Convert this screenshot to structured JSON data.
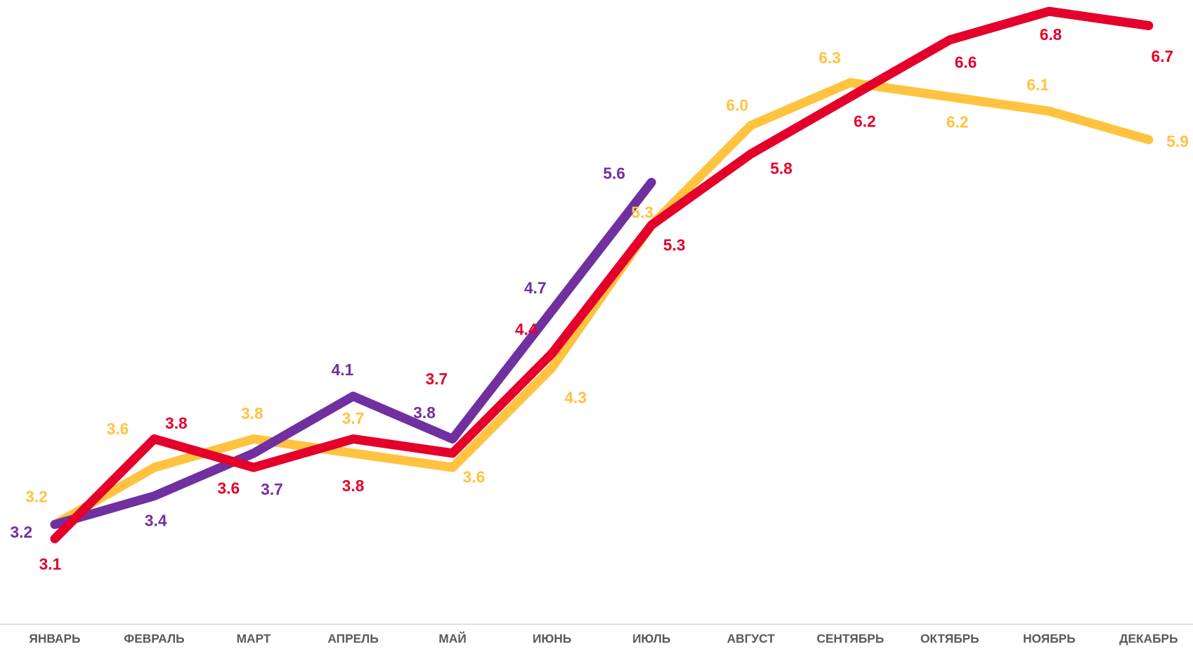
{
  "chart_data": {
    "type": "line",
    "categories": [
      "ЯНВАРЬ",
      "ФЕВРАЛЬ",
      "МАРТ",
      "АПРЕЛЬ",
      "МАЙ",
      "ИЮНЬ",
      "ИЮЛЬ",
      "АВГУСТ",
      "СЕНТЯБРЬ",
      "ОКТЯБРЬ",
      "НОЯБРЬ",
      "ДЕКАБРЬ"
    ],
    "series": [
      {
        "color": "#ffc340",
        "values": [
          3.2,
          3.6,
          3.8,
          3.7,
          3.6,
          4.3,
          5.3,
          6.0,
          6.3,
          6.2,
          6.1,
          5.9
        ],
        "value_labels": [
          "3.2",
          "3.6",
          "3.8",
          "3.7",
          "3.6",
          "4.3",
          "5.3",
          "6.0",
          "6.3",
          "6.2",
          "6.1",
          "5.9"
        ]
      },
      {
        "color": "#7030a0",
        "values": [
          3.2,
          3.4,
          3.7,
          4.1,
          3.8,
          4.7,
          5.6,
          null,
          null,
          null,
          null,
          null
        ],
        "value_labels": [
          "3.2",
          "3.4",
          "3.7",
          "4.1",
          "3.8",
          "4.7",
          "5.6",
          null,
          null,
          null,
          null,
          null
        ]
      },
      {
        "color": "#e4002b",
        "values": [
          3.1,
          3.8,
          3.6,
          3.8,
          3.7,
          4.4,
          5.3,
          5.8,
          6.2,
          6.6,
          6.8,
          6.7
        ],
        "value_labels": [
          "3.1",
          "3.8",
          "3.6",
          "3.8",
          "3.7",
          "4.4",
          "5.3",
          "5.8",
          "6.2",
          "6.6",
          "6.8",
          "6.7"
        ]
      }
    ],
    "ylim": [
      2.5,
      6.9
    ]
  }
}
